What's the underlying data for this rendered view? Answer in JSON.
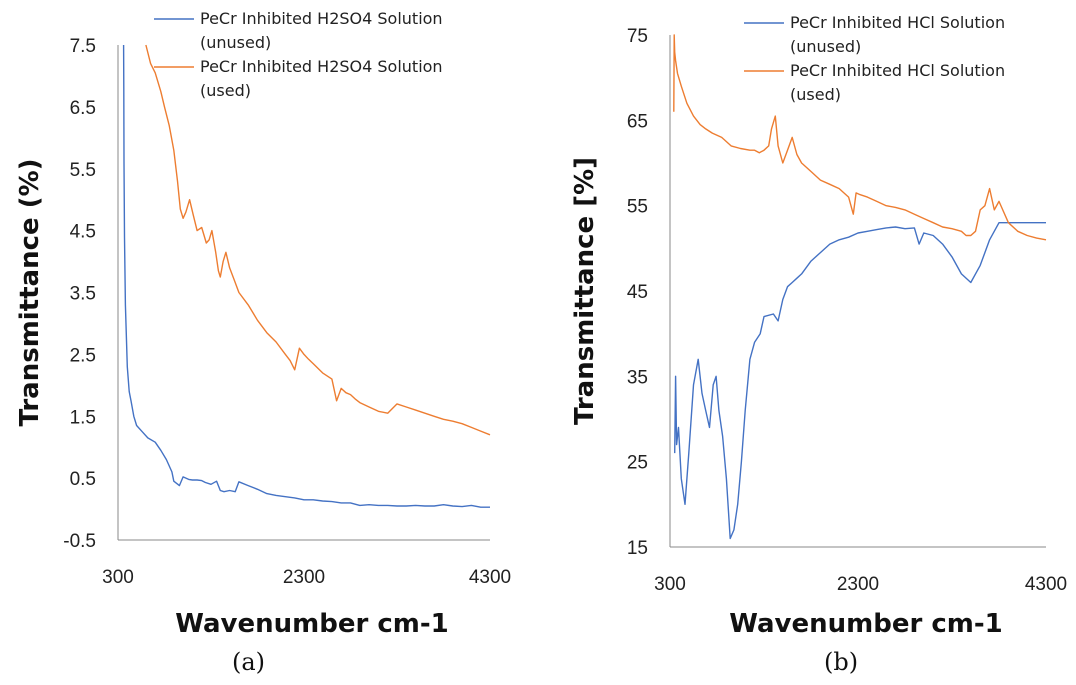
{
  "chart_data": [
    {
      "type": "line",
      "caption": "(a)",
      "xlabel": "Wavenumber cm-1",
      "ylabel": "Transmittance (%)",
      "xlim": [
        300,
        4300
      ],
      "ylim": [
        -0.5,
        7.5
      ],
      "xticks": [
        "300",
        "2300",
        "4300"
      ],
      "yticks": [
        "7.5",
        "6.5",
        "5.5",
        "4.5",
        "3.5",
        "2.5",
        "1.5",
        "0.5",
        "-0.5"
      ],
      "legend_position": "top",
      "series": [
        {
          "name": "PeCr Inhibited H2SO4 Solution (unused)",
          "color": "#4472C4",
          "x": [
            360,
            362,
            365,
            370,
            380,
            400,
            420,
            440,
            470,
            500,
            560,
            620,
            700,
            760,
            820,
            880,
            900,
            960,
            1000,
            1060,
            1100,
            1150,
            1200,
            1240,
            1300,
            1360,
            1400,
            1440,
            1500,
            1560,
            1600,
            1700,
            1800,
            1900,
            2000,
            2100,
            2200,
            2300,
            2400,
            2500,
            2600,
            2700,
            2800,
            2900,
            3000,
            3100,
            3200,
            3300,
            3400,
            3500,
            3600,
            3700,
            3800,
            3900,
            4000,
            4100,
            4200,
            4300
          ],
          "y": [
            7.5,
            6.8,
            5.6,
            4.4,
            3.3,
            2.3,
            1.9,
            1.75,
            1.5,
            1.35,
            1.25,
            1.15,
            1.08,
            0.95,
            0.8,
            0.6,
            0.45,
            0.38,
            0.52,
            0.48,
            0.47,
            0.47,
            0.46,
            0.43,
            0.4,
            0.45,
            0.3,
            0.28,
            0.3,
            0.28,
            0.44,
            0.38,
            0.32,
            0.25,
            0.22,
            0.2,
            0.18,
            0.15,
            0.15,
            0.13,
            0.12,
            0.1,
            0.1,
            0.06,
            0.07,
            0.06,
            0.06,
            0.05,
            0.05,
            0.06,
            0.05,
            0.05,
            0.07,
            0.05,
            0.04,
            0.06,
            0.03,
            0.03
          ]
        },
        {
          "name": "PeCr Inhibited H2SO4 Solution (used)",
          "color": "#ED7D31",
          "x": [
            600,
            650,
            700,
            760,
            800,
            850,
            900,
            940,
            970,
            1000,
            1030,
            1070,
            1110,
            1150,
            1200,
            1250,
            1280,
            1310,
            1350,
            1380,
            1400,
            1430,
            1460,
            1500,
            1550,
            1600,
            1700,
            1800,
            1900,
            2000,
            2100,
            2150,
            2200,
            2250,
            2300,
            2350,
            2400,
            2500,
            2600,
            2650,
            2700,
            2750,
            2800,
            2850,
            2900,
            3000,
            3100,
            3200,
            3300,
            3400,
            3500,
            3600,
            3700,
            3800,
            3900,
            4000,
            4100,
            4200,
            4300
          ],
          "y": [
            7.5,
            7.2,
            7.05,
            6.75,
            6.5,
            6.2,
            5.8,
            5.3,
            4.85,
            4.7,
            4.8,
            5.0,
            4.75,
            4.5,
            4.55,
            4.3,
            4.35,
            4.5,
            4.15,
            3.85,
            3.75,
            4.0,
            4.15,
            3.9,
            3.7,
            3.5,
            3.3,
            3.05,
            2.85,
            2.7,
            2.5,
            2.4,
            2.25,
            2.6,
            2.5,
            2.42,
            2.35,
            2.2,
            2.1,
            1.75,
            1.95,
            1.88,
            1.85,
            1.78,
            1.72,
            1.65,
            1.58,
            1.55,
            1.7,
            1.65,
            1.6,
            1.55,
            1.5,
            1.45,
            1.42,
            1.38,
            1.32,
            1.26,
            1.2
          ]
        }
      ]
    },
    {
      "type": "line",
      "caption": "(b)",
      "xlabel": "Wavenumber cm-1",
      "ylabel": "Transmittance [%]",
      "xlim": [
        300,
        4300
      ],
      "ylim": [
        15,
        75
      ],
      "xticks": [
        "300",
        "2300",
        "4300"
      ],
      "yticks": [
        "75",
        "65",
        "55",
        "45",
        "35",
        "25",
        "15"
      ],
      "legend_position": "top-right",
      "series": [
        {
          "name": "PeCr Inhibited HCl Solution (unused)",
          "color": "#4472C4",
          "x": [
            350,
            360,
            370,
            390,
            420,
            460,
            500,
            550,
            600,
            640,
            680,
            720,
            760,
            790,
            820,
            860,
            900,
            940,
            980,
            1020,
            1060,
            1100,
            1150,
            1200,
            1260,
            1300,
            1400,
            1450,
            1500,
            1550,
            1600,
            1650,
            1700,
            1800,
            1900,
            2000,
            2100,
            2200,
            2300,
            2400,
            2500,
            2600,
            2700,
            2800,
            2900,
            2950,
            3000,
            3100,
            3200,
            3300,
            3400,
            3500,
            3600,
            3700,
            3800,
            3900,
            4000,
            4100,
            4200,
            4300
          ],
          "y": [
            26,
            35,
            27,
            29,
            23,
            20,
            26,
            34,
            37,
            33,
            31,
            29,
            34,
            35,
            31,
            28,
            23,
            16,
            17,
            20,
            25,
            31,
            37,
            39,
            40,
            42,
            42.3,
            41.5,
            44,
            45.5,
            46,
            46.5,
            47,
            48.5,
            49.5,
            50.5,
            51,
            51.3,
            51.8,
            52,
            52.2,
            52.4,
            52.5,
            52.3,
            52.4,
            50.5,
            51.8,
            51.5,
            50.5,
            49,
            47,
            46,
            48,
            51,
            53,
            53,
            53,
            53,
            53,
            53
          ]
        },
        {
          "name": "PeCr Inhibited HCl Solution (used)",
          "color": "#ED7D31",
          "x": [
            340,
            345,
            350,
            360,
            380,
            420,
            480,
            550,
            620,
            680,
            750,
            850,
            950,
            1050,
            1150,
            1200,
            1250,
            1300,
            1350,
            1380,
            1420,
            1450,
            1500,
            1550,
            1600,
            1650,
            1700,
            1800,
            1900,
            2000,
            2100,
            2200,
            2250,
            2280,
            2320,
            2400,
            2500,
            2600,
            2700,
            2800,
            2900,
            3000,
            3100,
            3200,
            3300,
            3400,
            3450,
            3500,
            3550,
            3600,
            3650,
            3700,
            3750,
            3800,
            3900,
            4000,
            4100,
            4200,
            4300
          ],
          "y": [
            66,
            75,
            73,
            72,
            70.5,
            69,
            67,
            65.5,
            64.5,
            64,
            63.5,
            63,
            62,
            61.7,
            61.5,
            61.5,
            61.2,
            61.5,
            62,
            64,
            65.5,
            62,
            60,
            61.5,
            63,
            61,
            60,
            59,
            58,
            57.5,
            57,
            56,
            54,
            56.5,
            56.3,
            56,
            55.5,
            55,
            54.8,
            54.5,
            54,
            53.5,
            53,
            52.5,
            52.3,
            52,
            51.5,
            51.5,
            52,
            54.5,
            55,
            57,
            54.5,
            55.5,
            53,
            52,
            51.5,
            51.2,
            51
          ]
        }
      ]
    }
  ]
}
